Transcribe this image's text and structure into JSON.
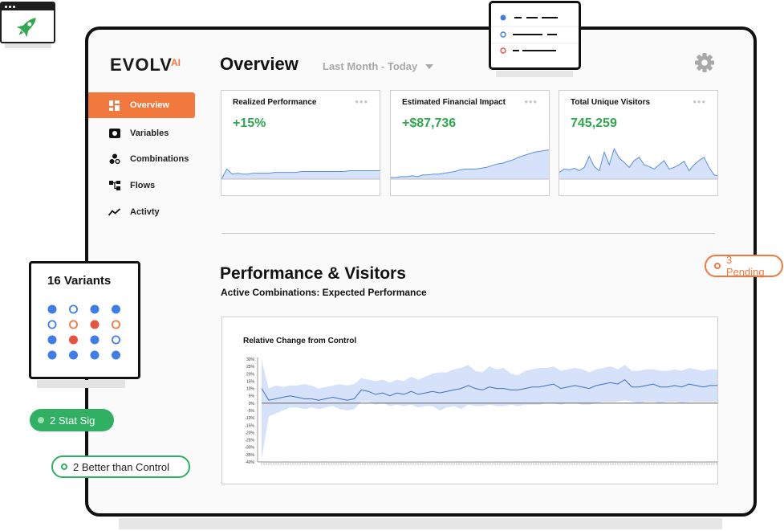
{
  "brand": {
    "logo_text": "EVOLV",
    "logo_suffix": "AI",
    "accent": "#f2793e",
    "positive": "#2fa84f"
  },
  "sidebar": {
    "items": [
      {
        "label": "Overview",
        "icon": "dashboard-icon",
        "active": true
      },
      {
        "label": "Variables",
        "icon": "variables-icon",
        "active": false
      },
      {
        "label": "Combinations",
        "icon": "combinations-icon",
        "active": false
      },
      {
        "label": "Flows",
        "icon": "flows-icon",
        "active": false
      },
      {
        "label": "Activty",
        "icon": "activity-icon",
        "active": false
      }
    ]
  },
  "header": {
    "title": "Overview",
    "date_range": "Last Month - Today",
    "settings_icon": "gear-icon"
  },
  "kpi_cards": [
    {
      "title": "Realized Performance",
      "value": "+15%",
      "menu_icon": "more-dots-icon"
    },
    {
      "title": "Estimated Financial Impact",
      "value": "+$87,736",
      "menu_icon": "more-dots-icon"
    },
    {
      "title": "Total Unique Visitors",
      "value": "745,259",
      "menu_icon": "more-dots-icon"
    }
  ],
  "section": {
    "title": "Performance & Visitors",
    "subtitle": "Active Combinations: Expected Performance",
    "chart_title": "Relative Change from Control"
  },
  "variants_card": {
    "title": "16 Variants",
    "states": [
      "filled-blue",
      "outline-blue",
      "filled-blue",
      "filled-blue",
      "outline-blue",
      "outline-orange",
      "filled-red",
      "outline-orange",
      "filled-blue",
      "filled-red",
      "filled-blue",
      "outline-blue",
      "filled-blue",
      "filled-blue",
      "filled-blue",
      "filled-blue"
    ]
  },
  "badges": {
    "stat_sig": "2 Stat Sig",
    "better_than_control": "2 Better than Control",
    "pending": "3 Pending"
  },
  "chart_data": {
    "type": "line",
    "title": "Relative Change from Control",
    "ylim": [
      -40,
      30
    ],
    "yticks": [
      "30%",
      "25%",
      "20%",
      "15%",
      "10%",
      "5%",
      "0%",
      "-5%",
      "-10%",
      "-15%",
      "-20%",
      "-25%",
      "-30%",
      "-35%",
      "-40%"
    ],
    "series": [
      {
        "values": [
          10,
          2,
          3,
          4,
          5,
          4,
          3,
          3,
          2,
          3,
          4,
          3,
          2,
          3,
          9,
          8,
          6,
          7,
          5,
          7,
          6,
          8,
          6,
          7,
          8,
          7,
          8,
          9,
          10,
          12,
          10,
          9,
          11,
          10,
          10,
          9,
          9,
          10,
          11,
          11,
          12,
          13,
          10,
          11,
          12,
          11,
          10,
          12,
          13,
          14,
          13,
          16,
          11,
          11,
          12,
          13,
          11,
          11,
          12,
          11,
          13,
          12,
          11,
          12,
          12
        ],
        "upper": [
          29,
          10,
          12,
          11,
          12,
          12,
          13,
          12,
          10,
          11,
          12,
          13,
          12,
          13,
          17,
          16,
          15,
          16,
          14,
          16,
          15,
          18,
          16,
          18,
          20,
          21,
          21,
          23,
          24,
          26,
          22,
          21,
          25,
          23,
          24,
          20,
          19,
          22,
          23,
          24,
          24,
          25,
          22,
          23,
          24,
          23,
          21,
          23,
          24,
          25,
          23,
          26,
          22,
          22,
          23,
          23,
          22,
          22,
          23,
          22,
          24,
          23,
          22,
          23,
          23
        ],
        "lower": [
          -38,
          -9,
          -7,
          -5,
          -3,
          -3,
          -4,
          -3,
          -4,
          -3,
          -2,
          -4,
          -5,
          -4,
          1,
          1,
          -1,
          0,
          -2,
          -1,
          -2,
          -1,
          -3,
          -2,
          -2,
          -5,
          -3,
          -2,
          -4,
          -1,
          -2,
          -2,
          -1,
          -2,
          -2,
          -1,
          -2,
          -1,
          -1,
          -1,
          0,
          0,
          -1,
          0,
          0,
          -1,
          -1,
          0,
          1,
          1,
          1,
          2,
          1,
          0,
          1,
          1,
          0,
          1,
          1,
          0,
          1,
          1,
          1,
          1,
          1
        ]
      }
    ]
  },
  "sparklines": {
    "realized_performance": [
      0,
      12,
      6,
      7,
      6,
      6,
      7,
      7,
      7,
      7,
      8,
      8,
      8,
      8,
      8,
      9,
      9,
      9,
      9,
      9,
      9,
      9,
      9,
      9,
      10,
      10,
      10,
      10,
      10,
      10,
      10
    ],
    "financial_impact": [
      2,
      2,
      3,
      3,
      4,
      3,
      5,
      5,
      6,
      6,
      7,
      8,
      9,
      11,
      12,
      12,
      12,
      13,
      14,
      16,
      18,
      19,
      21,
      23,
      26,
      28,
      30,
      32,
      33,
      34,
      35
    ],
    "unique_visitors": [
      8,
      12,
      11,
      13,
      10,
      14,
      27,
      15,
      10,
      32,
      17,
      36,
      25,
      20,
      14,
      22,
      26,
      17,
      15,
      12,
      17,
      22,
      12,
      14,
      17,
      21,
      10,
      17,
      22,
      26,
      14,
      5,
      4
    ]
  }
}
